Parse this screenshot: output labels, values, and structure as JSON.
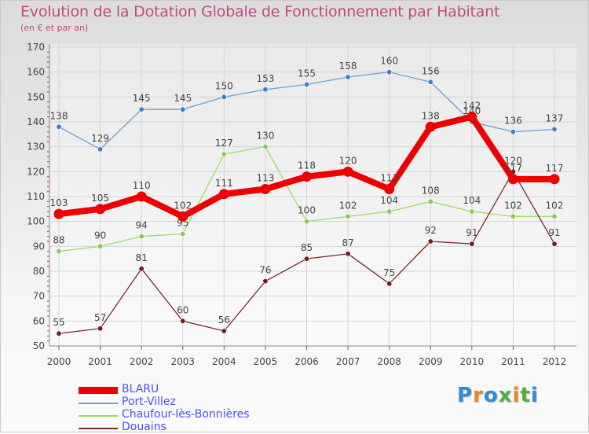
{
  "header": {
    "title": "Evolution de la Dotation Globale de Fonctionnement par Habitant",
    "subtitle": "(en € et par an)"
  },
  "logo": {
    "text": "Proxiti",
    "colors": [
      "#2e8bd8",
      "#e8851e",
      "#2e8bd8",
      "#4caf3a",
      "#e8851e",
      "#4caf3a",
      "#2e8bd8"
    ]
  },
  "chart_data": {
    "type": "line",
    "title": "Evolution de la Dotation Globale de Fonctionnement par Habitant",
    "subtitle": "(en € et par an)",
    "xlabel": "",
    "ylabel": "",
    "ylim": [
      50,
      170
    ],
    "yticks": [
      50,
      60,
      70,
      80,
      90,
      100,
      110,
      120,
      130,
      140,
      150,
      160,
      170
    ],
    "grid": true,
    "legend_position": "bottom-left",
    "categories": [
      "2000",
      "2001",
      "2002",
      "2003",
      "2004",
      "2005",
      "2006",
      "2007",
      "2008",
      "2009",
      "2010",
      "2011",
      "2012"
    ],
    "series": [
      {
        "name": "Port-Villez",
        "color": "#6a9fd4",
        "values": [
          138,
          129,
          145,
          145,
          150,
          153,
          155,
          158,
          160,
          156,
          140,
          136,
          137
        ]
      },
      {
        "name": "Chaufour-lès-Bonnières",
        "color": "#99dd66",
        "values": [
          88,
          90,
          94,
          95,
          127,
          130,
          100,
          102,
          104,
          108,
          104,
          102,
          102
        ]
      },
      {
        "name": "Douains",
        "color": "#7a2a2a",
        "values": [
          55,
          57,
          81,
          60,
          56,
          76,
          85,
          87,
          75,
          92,
          91,
          120,
          91
        ]
      },
      {
        "name": "BLARU",
        "color": "#ee0000",
        "values": [
          103,
          105,
          110,
          102,
          111,
          113,
          118,
          120,
          113,
          138,
          142,
          117,
          117
        ]
      }
    ],
    "legend_order": [
      "BLARU",
      "Port-Villez",
      "Chaufour-lès-Bonnières",
      "Douains"
    ]
  }
}
